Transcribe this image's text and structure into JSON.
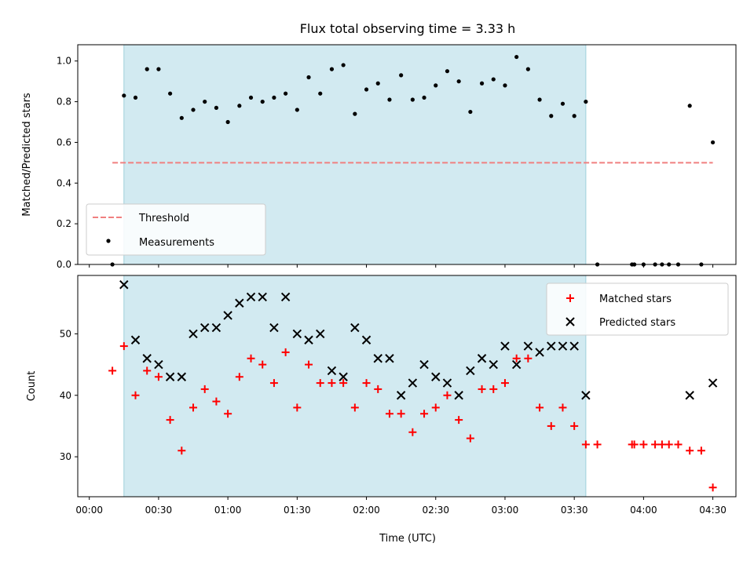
{
  "chart_data": [
    {
      "type": "scatter",
      "title": "Flux total observing time = 3.33 h",
      "ylabel": "Matched/Predicted stars",
      "xlim_minutes": [
        -5,
        280
      ],
      "ylim": [
        0,
        1.08
      ],
      "ytick_labels": [
        "0.0",
        "0.2",
        "0.4",
        "0.6",
        "0.8",
        "1.0"
      ],
      "shaded_span": {
        "start": "00:15",
        "end": "03:35",
        "color": "#add8e6"
      },
      "threshold": {
        "name": "Threshold",
        "value": 0.5,
        "x_start": "00:10",
        "x_end": "04:30",
        "color": "#f08080",
        "style": "dashed"
      },
      "legend": {
        "position": "lower left",
        "entries": [
          "Threshold",
          "Measurements"
        ]
      },
      "series": [
        {
          "name": "Measurements",
          "marker": "dot",
          "color": "#000000",
          "x": [
            "00:10",
            "00:15",
            "00:20",
            "00:25",
            "00:30",
            "00:35",
            "00:40",
            "00:45",
            "00:50",
            "00:55",
            "01:00",
            "01:05",
            "01:10",
            "01:15",
            "01:20",
            "01:25",
            "01:30",
            "01:35",
            "01:40",
            "01:45",
            "01:50",
            "01:55",
            "02:00",
            "02:05",
            "02:10",
            "02:15",
            "02:20",
            "02:25",
            "02:30",
            "02:35",
            "02:40",
            "02:45",
            "02:50",
            "02:55",
            "03:00",
            "03:05",
            "03:10",
            "03:15",
            "03:20",
            "03:25",
            "03:30",
            "03:35",
            "03:40",
            "03:55",
            "03:56",
            "04:00",
            "04:05",
            "04:08",
            "04:11",
            "04:15",
            "04:20",
            "04:25",
            "04:30"
          ],
          "y": [
            0.0,
            0.83,
            0.82,
            0.96,
            0.96,
            0.84,
            0.72,
            0.76,
            0.8,
            0.77,
            0.7,
            0.78,
            0.82,
            0.8,
            0.82,
            0.84,
            0.76,
            0.92,
            0.84,
            0.96,
            0.98,
            0.74,
            0.86,
            0.89,
            0.81,
            0.93,
            0.81,
            0.82,
            0.88,
            0.95,
            0.9,
            0.75,
            0.89,
            0.91,
            0.88,
            1.02,
            0.96,
            0.81,
            0.73,
            0.79,
            0.73,
            0.8,
            0.0,
            0.0,
            0.0,
            0.0,
            0.0,
            0.0,
            0.0,
            0.0,
            0.78,
            0.0,
            0.6
          ]
        }
      ]
    },
    {
      "type": "scatter",
      "xlabel": "Time (UTC)",
      "ylabel": "Count",
      "xlim_minutes": [
        -5,
        280
      ],
      "ylim": [
        23.5,
        59.5
      ],
      "ytick_labels": [
        "30",
        "40",
        "50"
      ],
      "xtick_labels": [
        "00:00",
        "00:30",
        "01:00",
        "01:30",
        "02:00",
        "02:30",
        "03:00",
        "03:30",
        "04:00",
        "04:30"
      ],
      "shaded_span": {
        "start": "00:15",
        "end": "03:35",
        "color": "#add8e6"
      },
      "legend": {
        "position": "upper right",
        "entries": [
          "Matched stars",
          "Predicted stars"
        ]
      },
      "series": [
        {
          "name": "Matched stars",
          "marker": "plus",
          "color": "#ff0000",
          "x": [
            "00:10",
            "00:15",
            "00:20",
            "00:25",
            "00:30",
            "00:35",
            "00:40",
            "00:45",
            "00:50",
            "00:55",
            "01:00",
            "01:05",
            "01:10",
            "01:15",
            "01:20",
            "01:25",
            "01:30",
            "01:35",
            "01:40",
            "01:45",
            "01:50",
            "01:55",
            "02:00",
            "02:05",
            "02:10",
            "02:15",
            "02:20",
            "02:25",
            "02:30",
            "02:35",
            "02:40",
            "02:45",
            "02:50",
            "02:55",
            "03:00",
            "03:05",
            "03:10",
            "03:15",
            "03:20",
            "03:25",
            "03:30",
            "03:35",
            "03:40",
            "03:55",
            "03:56",
            "04:00",
            "04:05",
            "04:08",
            "04:11",
            "04:15",
            "04:20",
            "04:25",
            "04:30"
          ],
          "y": [
            44,
            48,
            40,
            44,
            43,
            36,
            31,
            38,
            41,
            39,
            37,
            43,
            46,
            45,
            42,
            47,
            38,
            45,
            42,
            42,
            42,
            38,
            42,
            41,
            37,
            37,
            34,
            37,
            38,
            40,
            36,
            33,
            41,
            41,
            42,
            46,
            46,
            38,
            35,
            38,
            35,
            32,
            32,
            32,
            32,
            32,
            32,
            32,
            32,
            32,
            31,
            31,
            25
          ]
        },
        {
          "name": "Predicted stars",
          "marker": "x",
          "color": "#000000",
          "x": [
            "00:15",
            "00:20",
            "00:25",
            "00:30",
            "00:35",
            "00:40",
            "00:45",
            "00:50",
            "00:55",
            "01:00",
            "01:05",
            "01:10",
            "01:15",
            "01:20",
            "01:25",
            "01:30",
            "01:35",
            "01:40",
            "01:45",
            "01:50",
            "01:55",
            "02:00",
            "02:05",
            "02:10",
            "02:15",
            "02:20",
            "02:25",
            "02:30",
            "02:35",
            "02:40",
            "02:45",
            "02:50",
            "02:55",
            "03:00",
            "03:05",
            "03:10",
            "03:15",
            "03:20",
            "03:25",
            "03:30",
            "03:35",
            "04:20",
            "04:30"
          ],
          "y": [
            58,
            49,
            46,
            45,
            43,
            43,
            50,
            51,
            51,
            53,
            55,
            56,
            56,
            51,
            56,
            50,
            49,
            50,
            44,
            43,
            51,
            49,
            46,
            46,
            40,
            42,
            45,
            43,
            42,
            40,
            44,
            46,
            45,
            48,
            45,
            48,
            47,
            48,
            48,
            48,
            40,
            40,
            42
          ]
        }
      ]
    }
  ]
}
